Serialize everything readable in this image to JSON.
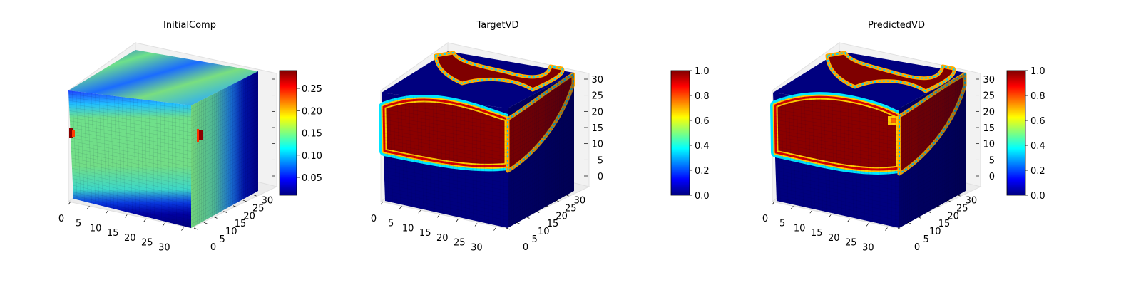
{
  "colors": {
    "background": "#ffffff",
    "pane_fill": "#f2f2f2",
    "pane_edge": "#e0e0e0",
    "grid": "#dddddd",
    "axis": "#000000",
    "colormap": [
      "#00007f",
      "#0000ff",
      "#007fff",
      "#00ffff",
      "#7fff7f",
      "#ffff00",
      "#ff7f00",
      "#ff0000",
      "#7f0000"
    ]
  },
  "chart_data": [
    {
      "type": "voxel3d",
      "title": "InitialComp",
      "colormap": "jet",
      "x_ticks": [
        "0",
        "5",
        "10",
        "15",
        "20",
        "25",
        "30"
      ],
      "y_ticks": [
        "0",
        "5",
        "10",
        "15",
        "20",
        "25",
        "30"
      ],
      "z_ticks": [
        "",
        "",
        "",
        "",
        "",
        "",
        ""
      ],
      "xlim": [
        0,
        32
      ],
      "ylim": [
        0,
        32
      ],
      "zlim": [
        0,
        32
      ],
      "grid": true,
      "colorbar": {
        "range": [
          0.01,
          0.29
        ],
        "ticks": [
          "0.05",
          "0.10",
          "0.15",
          "0.20",
          "0.25"
        ],
        "tick_values": [
          0.05,
          0.1,
          0.15,
          0.2,
          0.25
        ],
        "placement": "right"
      }
    },
    {
      "type": "voxel3d",
      "title": "TargetVD",
      "colormap": "jet",
      "x_ticks": [
        "0",
        "5",
        "10",
        "15",
        "20",
        "25",
        "30"
      ],
      "y_ticks": [
        "0",
        "5",
        "10",
        "15",
        "20",
        "25",
        "30"
      ],
      "z_ticks": [
        "0",
        "5",
        "10",
        "15",
        "20",
        "25",
        "30"
      ],
      "xlim": [
        0,
        32
      ],
      "ylim": [
        0,
        32
      ],
      "zlim": [
        0,
        32
      ],
      "grid": true,
      "colorbar": {
        "range": [
          0.0,
          1.0
        ],
        "ticks": [
          "0.0",
          "0.2",
          "0.4",
          "0.6",
          "0.8",
          "1.0"
        ],
        "tick_values": [
          0.0,
          0.2,
          0.4,
          0.6,
          0.8,
          1.0
        ],
        "placement": "right"
      }
    },
    {
      "type": "voxel3d",
      "title": "PredictedVD",
      "colormap": "jet",
      "x_ticks": [
        "0",
        "5",
        "10",
        "15",
        "20",
        "25",
        "30"
      ],
      "y_ticks": [
        "0",
        "5",
        "10",
        "15",
        "20",
        "25",
        "30"
      ],
      "z_ticks": [
        "0",
        "5",
        "10",
        "15",
        "20",
        "25",
        "30"
      ],
      "xlim": [
        0,
        32
      ],
      "ylim": [
        0,
        32
      ],
      "zlim": [
        0,
        32
      ],
      "grid": true,
      "colorbar": {
        "range": [
          0.0,
          1.0
        ],
        "ticks": [
          "0.0",
          "0.2",
          "0.4",
          "0.6",
          "0.8",
          "1.0"
        ],
        "tick_values": [
          0.0,
          0.2,
          0.4,
          0.6,
          0.8,
          1.0
        ],
        "placement": "right"
      }
    }
  ]
}
